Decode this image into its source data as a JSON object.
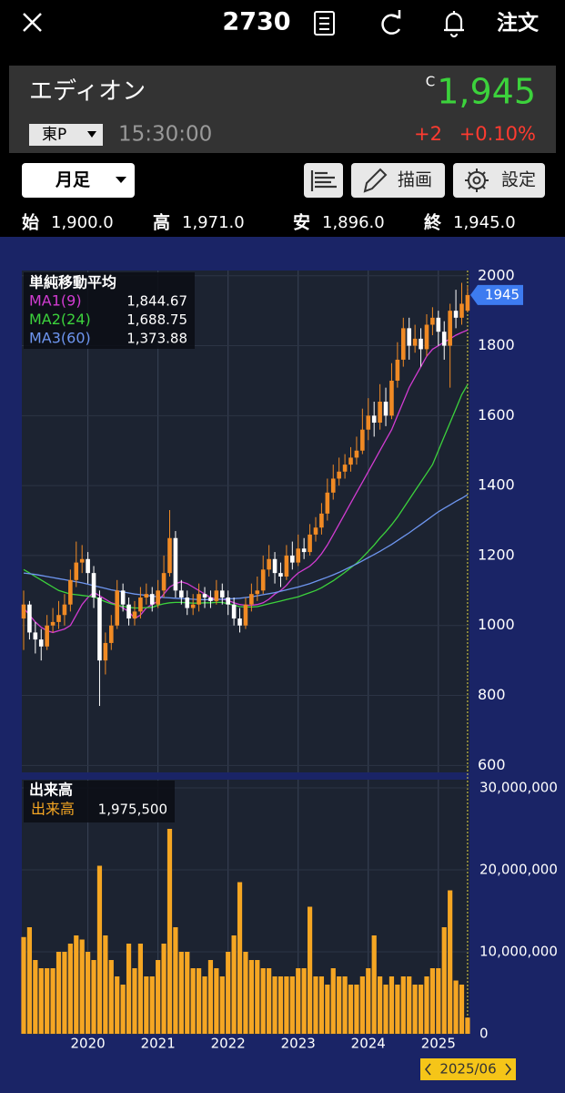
{
  "header": {
    "code": "2730",
    "order": "注文"
  },
  "quote": {
    "name": "エディオン",
    "flag": "C",
    "price": "1,945",
    "market": "東P",
    "time": "15:30:00",
    "change": "+2",
    "change_pct": "+0.10%"
  },
  "toolbar": {
    "period": "月足",
    "draw": "描画",
    "settings": "設定"
  },
  "ohlc": [
    {
      "label": "始",
      "value": "1,900.0"
    },
    {
      "label": "高",
      "value": "1,971.0"
    },
    {
      "label": "安",
      "value": "1,896.0"
    },
    {
      "label": "終",
      "value": "1,945.0"
    }
  ],
  "chart_data": [
    {
      "type": "candlestick",
      "title": "単純移動平均",
      "up_color": "#f08a24",
      "down_color": "#ffffff",
      "grid": true,
      "open": [
        1020,
        1060,
        980,
        960,
        940,
        1000,
        1010,
        1030,
        1060,
        1130,
        1180,
        1190,
        1150,
        1080,
        900,
        950,
        1000,
        1100,
        1060,
        1020,
        1040,
        1080,
        1090,
        1060,
        1100,
        1150,
        1250,
        1100,
        1080,
        1050,
        1060,
        1090,
        1080,
        1070,
        1100,
        1080,
        1060,
        1020,
        1000,
        1060,
        1090,
        1100,
        1160,
        1190,
        1150,
        1140,
        1200,
        1180,
        1220,
        1210,
        1260,
        1280,
        1320,
        1380,
        1420,
        1440,
        1460,
        1480,
        1500,
        1560,
        1600,
        1580,
        1640,
        1600,
        1700,
        1760,
        1850,
        1800,
        1820,
        1790,
        1860,
        1880,
        1840,
        1800,
        1900,
        1880,
        1900
      ],
      "high": [
        1100,
        1070,
        1010,
        990,
        1030,
        1050,
        1070,
        1090,
        1160,
        1240,
        1230,
        1210,
        1170,
        1100,
        980,
        1030,
        1130,
        1120,
        1080,
        1070,
        1110,
        1120,
        1110,
        1130,
        1200,
        1330,
        1270,
        1130,
        1100,
        1090,
        1120,
        1110,
        1100,
        1130,
        1120,
        1100,
        1080,
        1050,
        1080,
        1120,
        1140,
        1200,
        1230,
        1210,
        1180,
        1230,
        1240,
        1260,
        1250,
        1290,
        1310,
        1350,
        1420,
        1460,
        1480,
        1490,
        1510,
        1540,
        1620,
        1650,
        1640,
        1690,
        1680,
        1750,
        1810,
        1880,
        1880,
        1860,
        1850,
        1890,
        1910,
        1900,
        1870,
        1920,
        1960,
        1980,
        1971
      ],
      "low": [
        930,
        960,
        920,
        900,
        930,
        980,
        990,
        1000,
        1040,
        1110,
        1150,
        1120,
        1050,
        770,
        860,
        930,
        990,
        1040,
        1000,
        1000,
        1020,
        1060,
        1040,
        1050,
        1080,
        1140,
        1080,
        1060,
        1030,
        1030,
        1040,
        1050,
        1050,
        1060,
        1060,
        1030,
        1000,
        980,
        990,
        1040,
        1070,
        1090,
        1140,
        1120,
        1110,
        1130,
        1160,
        1170,
        1190,
        1200,
        1240,
        1260,
        1300,
        1360,
        1400,
        1420,
        1440,
        1460,
        1490,
        1530,
        1540,
        1560,
        1570,
        1590,
        1680,
        1740,
        1760,
        1780,
        1740,
        1770,
        1830,
        1800,
        1760,
        1680,
        1850,
        1860,
        1896
      ],
      "close": [
        1060,
        980,
        960,
        940,
        1000,
        1010,
        1030,
        1060,
        1130,
        1180,
        1190,
        1150,
        1080,
        900,
        950,
        1000,
        1100,
        1060,
        1020,
        1040,
        1080,
        1090,
        1060,
        1100,
        1150,
        1250,
        1100,
        1080,
        1050,
        1060,
        1090,
        1080,
        1070,
        1100,
        1080,
        1060,
        1020,
        1000,
        1060,
        1090,
        1100,
        1160,
        1190,
        1150,
        1140,
        1200,
        1180,
        1220,
        1210,
        1260,
        1280,
        1320,
        1380,
        1420,
        1440,
        1460,
        1480,
        1500,
        1560,
        1600,
        1580,
        1640,
        1600,
        1700,
        1760,
        1850,
        1800,
        1820,
        1790,
        1860,
        1880,
        1840,
        1800,
        1900,
        1880,
        1920,
        1945
      ],
      "series": [
        {
          "name": "MA1(9)",
          "color": "#d23cd2",
          "current": {
            "value": 1844.67,
            "label": "1,844.67"
          },
          "values": [
            1050,
            1030,
            1010,
            995,
            985,
            980,
            985,
            990,
            1000,
            1030,
            1060,
            1080,
            1095,
            1085,
            1075,
            1065,
            1060,
            1050,
            1040,
            1020,
            1030,
            1050,
            1060,
            1070,
            1090,
            1110,
            1120,
            1125,
            1120,
            1110,
            1100,
            1090,
            1080,
            1075,
            1075,
            1072,
            1065,
            1060,
            1058,
            1058,
            1060,
            1065,
            1075,
            1090,
            1100,
            1115,
            1135,
            1150,
            1160,
            1170,
            1185,
            1205,
            1230,
            1260,
            1290,
            1320,
            1350,
            1380,
            1410,
            1440,
            1470,
            1500,
            1530,
            1560,
            1600,
            1640,
            1680,
            1710,
            1740,
            1770,
            1790,
            1800,
            1810,
            1820,
            1830,
            1838,
            1844.67
          ]
        },
        {
          "name": "MA2(24)",
          "color": "#3cd23c",
          "current": {
            "value": 1688.75,
            "label": "1,688.75"
          },
          "values": [
            1160,
            1150,
            1140,
            1130,
            1120,
            1110,
            1100,
            1095,
            1090,
            1088,
            1086,
            1084,
            1082,
            1075,
            1068,
            1062,
            1058,
            1055,
            1052,
            1050,
            1050,
            1051,
            1052,
            1058,
            1062,
            1065,
            1066,
            1066,
            1065,
            1064,
            1064,
            1065,
            1065,
            1066,
            1066,
            1062,
            1058,
            1054,
            1053,
            1053,
            1054,
            1058,
            1062,
            1066,
            1070,
            1074,
            1078,
            1082,
            1088,
            1094,
            1100,
            1108,
            1118,
            1128,
            1140,
            1152,
            1165,
            1178,
            1195,
            1212,
            1230,
            1250,
            1268,
            1288,
            1310,
            1335,
            1360,
            1385,
            1410,
            1435,
            1460,
            1500,
            1540,
            1580,
            1620,
            1660,
            1688.75
          ]
        },
        {
          "name": "MA3(60)",
          "color": "#6e96f0",
          "current": {
            "value": 1373.88,
            "label": "1,373.88"
          },
          "values": [
            1150,
            1148,
            1146,
            1143,
            1140,
            1137,
            1134,
            1131,
            1128,
            1125,
            1122,
            1118,
            1114,
            1110,
            1106,
            1102,
            1099,
            1096,
            1093,
            1090,
            1088,
            1086,
            1084,
            1082,
            1080,
            1079,
            1078,
            1077,
            1076,
            1075,
            1074,
            1074,
            1074,
            1074,
            1075,
            1076,
            1077,
            1078,
            1080,
            1082,
            1085,
            1088,
            1091,
            1094,
            1098,
            1102,
            1106,
            1110,
            1115,
            1120,
            1126,
            1132,
            1138,
            1145,
            1152,
            1160,
            1168,
            1176,
            1185,
            1194,
            1203,
            1212,
            1222,
            1232,
            1243,
            1254,
            1265,
            1277,
            1289,
            1301,
            1313,
            1325,
            1335,
            1345,
            1355,
            1364,
            1373.88
          ]
        }
      ],
      "ylim": [
        580,
        2015
      ],
      "yticks": [
        600,
        800,
        1000,
        1200,
        1400,
        1600,
        1800,
        2000
      ]
    },
    {
      "type": "bar",
      "title": "出来高",
      "grid": true,
      "categories": [
        null,
        null,
        null,
        null,
        null,
        null,
        null,
        null,
        null,
        null,
        null,
        "2020",
        null,
        null,
        null,
        null,
        null,
        null,
        null,
        null,
        null,
        null,
        null,
        "2021",
        null,
        null,
        null,
        null,
        null,
        null,
        null,
        null,
        null,
        null,
        null,
        "2022",
        null,
        null,
        null,
        null,
        null,
        null,
        null,
        null,
        null,
        null,
        null,
        "2023",
        null,
        null,
        null,
        null,
        null,
        null,
        null,
        null,
        null,
        null,
        null,
        "2024",
        null,
        null,
        null,
        null,
        null,
        null,
        null,
        null,
        null,
        null,
        null,
        "2025",
        null,
        null,
        null,
        null,
        "2025/06"
      ],
      "series": [
        {
          "name": "出来高",
          "color": "#f5a623",
          "current": {
            "value": 1975500,
            "label": "1,975,500"
          },
          "values": [
            11800000,
            13000000,
            9000000,
            8000000,
            8000000,
            8000000,
            10000000,
            10000000,
            11000000,
            12000000,
            11500000,
            10000000,
            9000000,
            20500000,
            12000000,
            9000000,
            7000000,
            6000000,
            11000000,
            8000000,
            11000000,
            7000000,
            7000000,
            9000000,
            11000000,
            25000000,
            13000000,
            10000000,
            10000000,
            8000000,
            8000000,
            7000000,
            9000000,
            8000000,
            7000000,
            10000000,
            12000000,
            18500000,
            10000000,
            9000000,
            9000000,
            8000000,
            8000000,
            7000000,
            7000000,
            7000000,
            7000000,
            8000000,
            8000000,
            15500000,
            7000000,
            7000000,
            6000000,
            8000000,
            7000000,
            7000000,
            6000000,
            6000000,
            7000000,
            8000000,
            12000000,
            7000000,
            6000000,
            7000000,
            6000000,
            7000000,
            7000000,
            6000000,
            6000000,
            7000000,
            8000000,
            8000000,
            13000000,
            17500000,
            6500000,
            6000000,
            1975500
          ]
        }
      ],
      "ylim": [
        0,
        31000000
      ],
      "yticks": [
        0,
        {
          "value": 10000000,
          "label": "10,000,000"
        },
        {
          "value": 20000000,
          "label": "20,000,000"
        },
        {
          "value": 30000000,
          "label": "30,000,000"
        }
      ]
    }
  ]
}
